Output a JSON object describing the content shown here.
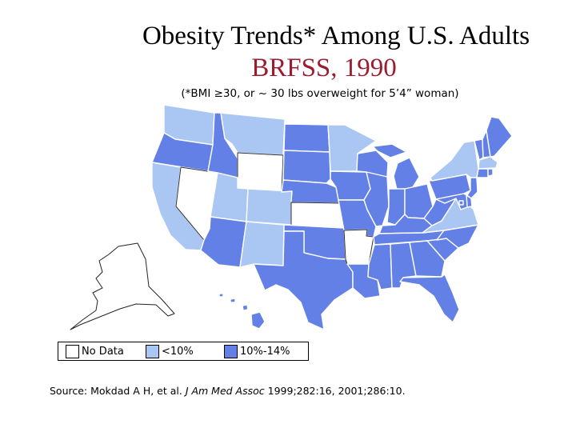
{
  "title": {
    "line1": "Obesity Trends* Among U.S. Adults",
    "line2": "BRFSS, 1990",
    "line2_color": "#9b1b30"
  },
  "subtitle": "(*BMI ≥30, or ~ 30 lbs overweight for 5’4” woman)",
  "colors": {
    "no_data": "#ffffff",
    "lt10": "#a9c7f2",
    "10to14": "#6380e6"
  },
  "legend": [
    {
      "key": "no_data",
      "label": "No Data"
    },
    {
      "key": "lt10",
      "label": "<10%"
    },
    {
      "key": "10to14",
      "label": "10%-14%"
    }
  ],
  "map_data": {
    "WA": "lt10",
    "OR": "10to14",
    "CA": "lt10",
    "NV": "no_data",
    "ID": "10to14",
    "MT": "lt10",
    "WY": "no_data",
    "UT": "lt10",
    "AZ": "10to14",
    "CO": "lt10",
    "NM": "lt10",
    "ND": "10to14",
    "SD": "10to14",
    "NE": "10to14",
    "KS": "no_data",
    "OK": "10to14",
    "TX": "10to14",
    "MN": "lt10",
    "IA": "10to14",
    "MO": "10to14",
    "AR": "no_data",
    "LA": "10to14",
    "WI": "10to14",
    "IL": "10to14",
    "MI": "10to14",
    "IN": "10to14",
    "OH": "10to14",
    "KY": "10to14",
    "TN": "10to14",
    "MS": "10to14",
    "AL": "10to14",
    "GA": "10to14",
    "FL": "10to14",
    "SC": "10to14",
    "NC": "10to14",
    "VA": "lt10",
    "WV": "10to14",
    "PA": "10to14",
    "NY": "lt10",
    "VT": "10to14",
    "NH": "10to14",
    "ME": "10to14",
    "MA": "lt10",
    "CT": "10to14",
    "RI": "10to14",
    "NJ": "10to14",
    "DE": "10to14",
    "MD": "10to14",
    "DC": "10to14",
    "AK": "no_data",
    "HI": "10to14"
  },
  "source": {
    "prefix": "Source: Mokdad A H, et al. ",
    "journal": "J Am Med Assoc",
    "suffix": " 1999;282:16, 2001;286:10."
  }
}
